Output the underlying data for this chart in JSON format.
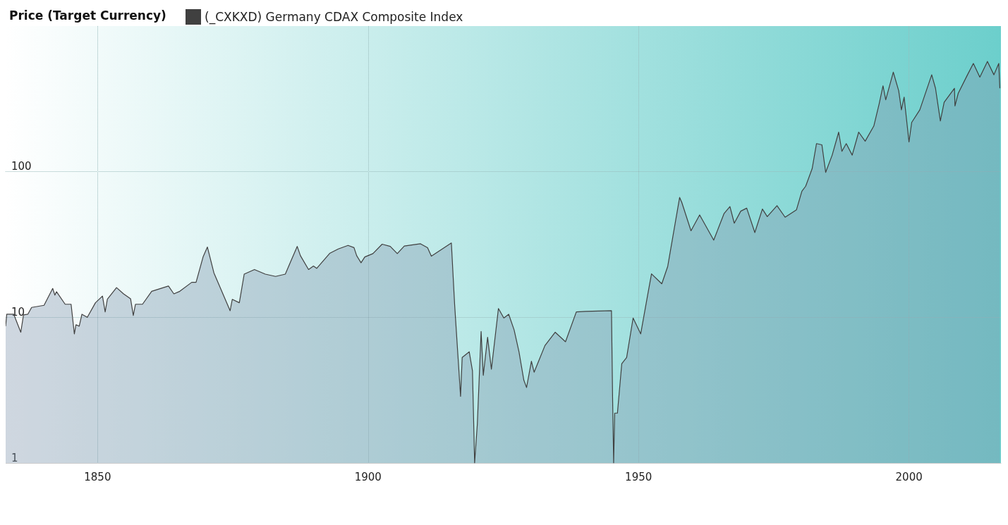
{
  "chart_data": {
    "type": "area",
    "title": "Price (Target Currency)",
    "series": [
      {
        "name": "(_CXKXD) Germany CDAX Composite Index",
        "color": "#404040",
        "x": [
          1833,
          1833.2,
          1834.5,
          1835.8,
          1836.3,
          1837.1,
          1837.8,
          1840.1,
          1841.7,
          1842.1,
          1842.4,
          1844,
          1845.1,
          1845.7,
          1846,
          1846.6,
          1847.1,
          1848.1,
          1849.6,
          1850.9,
          1851.4,
          1851.8,
          1853.5,
          1854.8,
          1856.1,
          1856.6,
          1857,
          1858.3,
          1860,
          1863.1,
          1864.1,
          1865.2,
          1867.4,
          1868.2,
          1869.5,
          1870.3,
          1871.5,
          1872.8,
          1874.5,
          1874.9,
          1876.2,
          1877.1,
          1879,
          1881,
          1882.9,
          1884.7,
          1885.8,
          1886.9,
          1887.5,
          1889,
          1889.9,
          1890.5,
          1892.9,
          1894.5,
          1896.3,
          1897.4,
          1897.9,
          1898.7,
          1899.4,
          1900.9,
          1902.6,
          1904.1,
          1905.4,
          1906.7,
          1909.7,
          1911,
          1911.7,
          1915.4,
          1916,
          1917.1,
          1917.4,
          1918.7,
          1919.3,
          1919.7,
          1920.2,
          1920.9,
          1921.3,
          1922.1,
          1922.8,
          1924.1,
          1925.1,
          1926,
          1927,
          1927.9,
          1928.8,
          1929.3,
          1930.2,
          1930.7,
          1932.7,
          1934.6,
          1936.5,
          1938.5,
          1940.2,
          1945,
          1945.2,
          1945.4,
          1945.6,
          1946.1,
          1946.9,
          1947.8,
          1949,
          1950.4,
          1951.7,
          1952.4,
          1954.3,
          1955.4,
          1957.6,
          1958,
          1959.7,
          1961.3,
          1963.9,
          1965.8,
          1966.9,
          1967.7,
          1968.9,
          1970,
          1971.5,
          1972.9,
          1973.8,
          1975.6,
          1977.1,
          1979.2,
          1980.2,
          1980.9,
          1982.1,
          1982.9,
          1983.9,
          1984.6,
          1985.8,
          1987,
          1987.6,
          1988.4,
          1989.5,
          1990.7,
          1991.9,
          1993.5,
          1994.5,
          1995.2,
          1995.7,
          1997.1,
          1998.1,
          1998.6,
          1999.1,
          2000,
          2000.5,
          2002,
          2004.2,
          2004.9,
          2005.8,
          2006.5,
          2008.4,
          2008.5,
          2009.1,
          2010.7,
          2011.9,
          2013.1,
          2014.5,
          2015.7,
          2016.6,
          2016.8
        ],
        "values": [
          8.7,
          10.5,
          10.5,
          7.9,
          10.4,
          10.5,
          11.7,
          12.1,
          15.8,
          14.2,
          15,
          12.3,
          12.3,
          7.7,
          8.9,
          8.7,
          10.5,
          10,
          12.6,
          14,
          10.9,
          13.3,
          16,
          14.5,
          13.4,
          10.3,
          12.3,
          12.3,
          15.1,
          16.4,
          14.5,
          15.1,
          17.4,
          17.4,
          26,
          30.4,
          20.2,
          15.6,
          11.1,
          13.3,
          12.6,
          19.8,
          21.3,
          19.8,
          19.1,
          19.8,
          24.7,
          30.7,
          26.5,
          21.3,
          22.5,
          21.7,
          27.5,
          29.5,
          31.2,
          30.1,
          26.5,
          23.7,
          26,
          27.4,
          31.8,
          30.7,
          27.4,
          30.9,
          32,
          30.1,
          26.3,
          32.4,
          12.3,
          2.87,
          5.3,
          5.8,
          4.3,
          1,
          1.85,
          8,
          4,
          7.3,
          4.4,
          11.5,
          9.9,
          10.5,
          8.2,
          5.8,
          3.7,
          3.3,
          5,
          4.2,
          6.4,
          7.9,
          6.8,
          10.9,
          11,
          11.1,
          2.9,
          1,
          2.2,
          2.2,
          4.8,
          5.3,
          9.9,
          7.7,
          14.3,
          19.9,
          17,
          22.4,
          66.6,
          61.5,
          39.3,
          50.5,
          33.9,
          51.5,
          57.6,
          44.3,
          53.6,
          56.2,
          38.2,
          55.4,
          49.2,
          58.5,
          48.7,
          54.8,
          73.5,
          79.5,
          105,
          156,
          153,
          99,
          130,
          187,
          138,
          156,
          130,
          187,
          162,
          206,
          294,
          389,
          312,
          483,
          359,
          266,
          325,
          160,
          218,
          266,
          463,
          374,
          223,
          300,
          374,
          283,
          345,
          454,
          554,
          446,
          572,
          463,
          554,
          374
        ]
      }
    ],
    "xlim": [
      1833,
      2017
    ],
    "xticks": [
      1850,
      1900,
      1950,
      2000
    ],
    "ylim": [
      1,
      1000
    ],
    "yticks": [
      1,
      10,
      100
    ],
    "log": "y",
    "grid": true,
    "legend": "top",
    "marker": "none",
    "line_style": "solid"
  }
}
